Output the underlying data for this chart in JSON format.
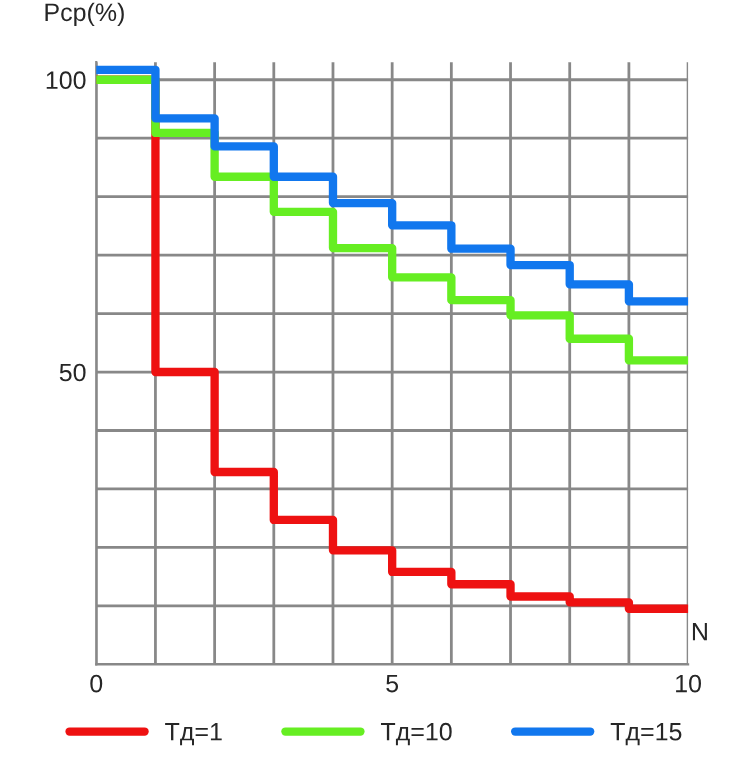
{
  "chart_data": {
    "type": "step",
    "ylabel": "Pср(%)",
    "xlabel": "N",
    "x": [
      0,
      1,
      2,
      3,
      4,
      5,
      6,
      7,
      8,
      9,
      10
    ],
    "series": [
      {
        "name": "Тд=1",
        "color": "#ee1111",
        "values": [
          100,
          50,
          32.9,
          24.7,
          19.5,
          15.8,
          13.7,
          11.6,
          10.6,
          9.5,
          9.5
        ]
      },
      {
        "name": "Тд=10",
        "color": "#66ee22",
        "values": [
          100,
          90.9,
          83.4,
          77.4,
          71.2,
          66.2,
          62.3,
          59.7,
          55.7,
          52,
          52
        ]
      },
      {
        "name": "Тд=15",
        "color": "#1177ee",
        "values": [
          101.7,
          93.4,
          88.6,
          83.4,
          78.9,
          75.1,
          71.1,
          68.3,
          65,
          62.1,
          62.1
        ]
      }
    ],
    "xlim": [
      0,
      10
    ],
    "ylim": [
      0,
      103
    ],
    "xticks": [
      0,
      {
        "value": 1,
        "label": null
      },
      {
        "value": 2,
        "label": null
      },
      {
        "value": 3,
        "label": null
      },
      {
        "value": 4,
        "label": null
      },
      5,
      {
        "value": 6,
        "label": null
      },
      {
        "value": 7,
        "label": null
      },
      {
        "value": 8,
        "label": null
      },
      {
        "value": 9,
        "label": null
      },
      10
    ],
    "yticks": [
      {
        "value": 0,
        "label": null
      },
      {
        "value": 10,
        "label": null
      },
      {
        "value": 20,
        "label": null
      },
      {
        "value": 30,
        "label": null
      },
      {
        "value": 40,
        "label": null
      },
      50,
      {
        "value": 60,
        "label": null
      },
      {
        "value": 70,
        "label": null
      },
      {
        "value": 80,
        "label": null
      },
      {
        "value": 90,
        "label": null
      },
      100
    ],
    "grid": true,
    "legend": "bottom",
    "line_style": "solid"
  }
}
